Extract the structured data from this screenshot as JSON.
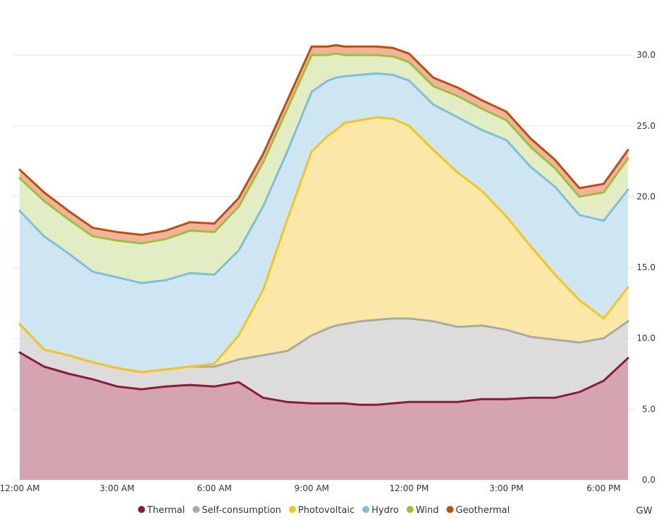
{
  "chart_data": {
    "type": "area",
    "stacked": true,
    "y_axis_position": "right",
    "unit_label": "GW",
    "ylim": [
      0,
      31.5
    ],
    "yticks": [
      0,
      5,
      10,
      15,
      20,
      25,
      30
    ],
    "ytick_labels": [
      "0.0",
      "5.0",
      "10.0",
      "15.0",
      "20.0",
      "25.0",
      "30.0"
    ],
    "xlim": [
      0,
      18.75
    ],
    "xticks": [
      0,
      3,
      6,
      9,
      12,
      15,
      18
    ],
    "xtick_labels": [
      "12:00 AM",
      "3:00 AM",
      "6:00 AM",
      "9:00 AM",
      "12:00 PM",
      "3:00 PM",
      "6:00 PM"
    ],
    "x_hours": [
      0,
      0.75,
      1.5,
      2.25,
      3,
      3.75,
      4.5,
      5.25,
      6,
      6.75,
      7.5,
      8.25,
      9,
      9.5,
      9.75,
      10,
      10.5,
      11,
      11.5,
      12,
      12.75,
      13.5,
      14.25,
      15,
      15.75,
      16.5,
      17.25,
      18,
      18.75
    ],
    "grid": true,
    "legend_position": "bottom-center",
    "series": [
      {
        "name": "Thermal",
        "color": "#8b1a3e",
        "fill": "#d4a5b0",
        "values": [
          9.0,
          8.0,
          7.5,
          7.1,
          6.6,
          6.4,
          6.6,
          6.7,
          6.6,
          6.9,
          5.8,
          5.5,
          5.4,
          5.4,
          5.4,
          5.4,
          5.3,
          5.3,
          5.4,
          5.5,
          5.5,
          5.5,
          5.7,
          5.7,
          5.8,
          5.8,
          6.2,
          7.0,
          8.6
        ]
      },
      {
        "name": "Self-consumption",
        "color": "#a9a9a9",
        "fill": "#dcdcdc",
        "values": [
          2.0,
          1.2,
          1.3,
          1.2,
          1.3,
          1.2,
          1.2,
          1.3,
          1.4,
          1.6,
          3.0,
          3.6,
          4.8,
          5.3,
          5.5,
          5.6,
          5.9,
          6.0,
          6.0,
          5.9,
          5.7,
          5.3,
          5.2,
          4.9,
          4.3,
          4.1,
          3.5,
          3.0,
          2.6
        ]
      },
      {
        "name": "Photovoltaic",
        "color": "#f5c518",
        "fill": "#fbe7a7",
        "values": [
          0,
          0,
          0,
          0,
          0,
          0,
          0,
          0,
          0.2,
          1.7,
          4.6,
          9.3,
          13.0,
          13.6,
          13.8,
          14.2,
          14.2,
          14.3,
          14.1,
          13.6,
          12.1,
          10.9,
          9.5,
          8.0,
          6.4,
          4.6,
          3.0,
          1.4,
          2.4
        ]
      },
      {
        "name": "Hydro",
        "color": "#7bc1dc",
        "fill": "#cde6f1",
        "values": [
          8.0,
          8.0,
          7.2,
          6.4,
          6.4,
          6.3,
          6.3,
          6.6,
          6.3,
          6.0,
          5.9,
          4.8,
          4.2,
          3.9,
          3.7,
          3.3,
          3.2,
          3.1,
          3.1,
          3.2,
          3.2,
          3.9,
          4.3,
          5.4,
          5.6,
          6.2,
          6.0,
          6.9,
          6.9
        ]
      },
      {
        "name": "Wind",
        "color": "#9fbe3c",
        "fill": "#e3edc4",
        "values": [
          2.3,
          2.5,
          2.4,
          2.5,
          2.6,
          2.8,
          2.9,
          3.0,
          3.0,
          3.1,
          3.1,
          3.0,
          2.6,
          1.8,
          1.7,
          1.5,
          1.4,
          1.3,
          1.3,
          1.3,
          1.3,
          1.5,
          1.5,
          1.4,
          1.4,
          1.3,
          1.3,
          2.0,
          2.2
        ]
      },
      {
        "name": "Geothermal",
        "color": "#c44a10",
        "fill": "#f0b49a",
        "values": [
          0.6,
          0.6,
          0.6,
          0.6,
          0.6,
          0.6,
          0.6,
          0.6,
          0.6,
          0.6,
          0.6,
          0.6,
          0.6,
          0.6,
          0.6,
          0.6,
          0.6,
          0.6,
          0.6,
          0.6,
          0.6,
          0.6,
          0.6,
          0.6,
          0.6,
          0.6,
          0.6,
          0.6,
          0.6
        ]
      }
    ]
  }
}
